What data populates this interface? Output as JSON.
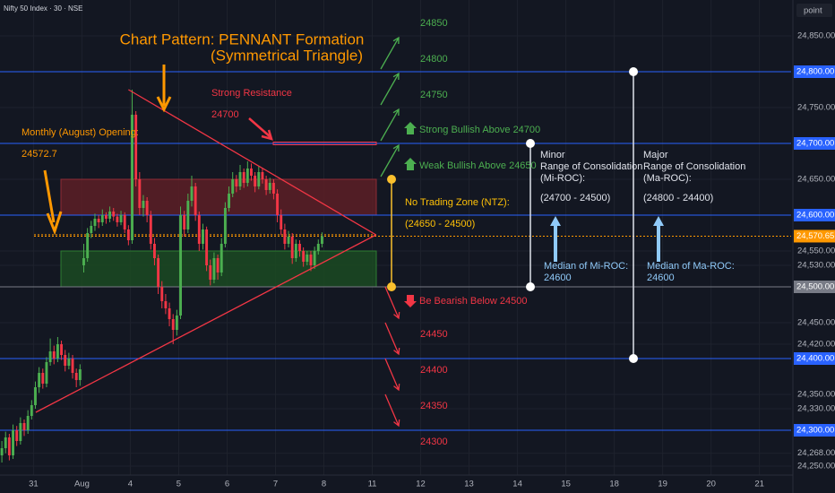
{
  "chart_data": {
    "type": "candlestick",
    "header": "Nifty 50 Index · 30 · NSE",
    "axis_unit": "point",
    "title": "Chart Pattern: PENNANT Formation",
    "subtitle": "(Symmetrical Triangle)",
    "colors": {
      "up": "#4caf50",
      "down": "#f23645",
      "grid": "#1e222d",
      "background": "#131722"
    },
    "grid": true,
    "xlim": [
      0,
      212.5
    ],
    "xticks": [
      {
        "value": 9,
        "label": "31"
      },
      {
        "value": 22,
        "label": "Aug"
      },
      {
        "value": 35,
        "label": "4"
      },
      {
        "value": 48,
        "label": "5"
      },
      {
        "value": 61,
        "label": "6"
      },
      {
        "value": 74,
        "label": "7"
      },
      {
        "value": 87,
        "label": "8"
      },
      {
        "value": 100,
        "label": "11"
      },
      {
        "value": 113,
        "label": "12"
      },
      {
        "value": 126,
        "label": "13"
      },
      {
        "value": 139,
        "label": "14"
      },
      {
        "value": 152,
        "label": "15"
      },
      {
        "value": 165,
        "label": "18"
      },
      {
        "value": 178,
        "label": "19"
      },
      {
        "value": 191,
        "label": "20"
      },
      {
        "value": 204,
        "label": "21"
      }
    ],
    "ylim": [
      24237.5,
      24900
    ],
    "yticks": [
      {
        "value": 24850,
        "label": "24,850.00"
      },
      {
        "value": 24750,
        "label": "24,750.00"
      },
      {
        "value": 24650,
        "label": "24,650.00"
      },
      {
        "value": 24550,
        "label": "24,550.00"
      },
      {
        "value": 24530,
        "label": "24,530.00"
      },
      {
        "value": 24450,
        "label": "24,450.00"
      },
      {
        "value": 24420,
        "label": "24,420.00"
      },
      {
        "value": 24350,
        "label": "24,350.00"
      },
      {
        "value": 24330,
        "label": "24,330.00"
      },
      {
        "value": 24268,
        "label": "24,268.00"
      },
      {
        "value": 24250,
        "label": "24,250.00"
      }
    ],
    "price_labels": [
      {
        "value": 24800,
        "label": "24,800.00",
        "color": "#2962ff",
        "line": "solid"
      },
      {
        "value": 24700,
        "label": "24,700.00",
        "color": "#2962ff",
        "line": "solid"
      },
      {
        "value": 24600,
        "label": "24,600.00",
        "color": "#2962ff",
        "line": "solid"
      },
      {
        "value": 24570.65,
        "label": "24,570.65",
        "color": "#ff9800",
        "line": "dotted"
      },
      {
        "value": 24500,
        "label": "24,500.00",
        "color": "#787b86",
        "line": "solid"
      },
      {
        "value": 24400,
        "label": "24,400.00",
        "color": "#2962ff",
        "line": "solid"
      },
      {
        "value": 24300,
        "label": "24,300.00",
        "color": "#2962ff",
        "line": "solid"
      }
    ],
    "open": [
      24265,
      24275,
      24290,
      24265,
      24300,
      24285,
      24310,
      24300,
      24320,
      24335,
      24360,
      24380,
      24365,
      24395,
      24410,
      24400,
      24420,
      24405,
      24390,
      24400,
      24380,
      24370,
      24530,
      24540,
      24575,
      24585,
      24595,
      24590,
      24600,
      24595,
      24605,
      24598,
      24590,
      24600,
      24580,
      24565,
      24740,
      24650,
      24610,
      24620,
      24600,
      24560,
      24540,
      24500,
      24480,
      24470,
      24455,
      24440,
      24460,
      24600,
      24580,
      24620,
      24640,
      24600,
      24560,
      24580,
      24530,
      24510,
      24540,
      24520,
      24560,
      24610,
      24630,
      24650,
      24640,
      24660,
      24645,
      24665,
      24655,
      24640,
      24660,
      24650,
      24635,
      24645,
      24630,
      24600,
      24580,
      24560,
      24570,
      24540,
      24560,
      24550,
      24535,
      24545,
      24530,
      24550,
      24560
    ],
    "high": [
      24285,
      24298,
      24295,
      24308,
      24306,
      24318,
      24315,
      24328,
      24342,
      24368,
      24388,
      24386,
      24402,
      24428,
      24418,
      24430,
      24425,
      24412,
      24408,
      24405,
      24386,
      24392,
      24560,
      24582,
      24592,
      24602,
      24600,
      24608,
      24604,
      24612,
      24610,
      24602,
      24606,
      24604,
      24586,
      24775,
      24745,
      24660,
      24628,
      24625,
      24606,
      24568,
      24545,
      24508,
      24490,
      24478,
      24462,
      24468,
      24612,
      24606,
      24630,
      24655,
      24645,
      24605,
      24588,
      24584,
      24538,
      24548,
      24545,
      24568,
      24618,
      24640,
      24660,
      24656,
      24670,
      24665,
      24675,
      24672,
      24660,
      24668,
      24666,
      24655,
      24652,
      24650,
      24636,
      24608,
      24588,
      24578,
      24575,
      24566,
      24565,
      24555,
      24550,
      24550,
      24556,
      24566,
      24576
    ],
    "low": [
      24255,
      24268,
      24258,
      24260,
      24278,
      24280,
      24292,
      24295,
      24315,
      24330,
      24352,
      24358,
      24360,
      24390,
      24392,
      24395,
      24398,
      24382,
      24385,
      24372,
      24360,
      24362,
      24520,
      24535,
      24568,
      24578,
      24582,
      24585,
      24588,
      24590,
      24592,
      24584,
      24586,
      24575,
      24558,
      24560,
      24640,
      24600,
      24598,
      24590,
      24552,
      24530,
      24490,
      24470,
      24462,
      24445,
      24420,
      24432,
      24455,
      24570,
      24575,
      24612,
      24592,
      24550,
      24552,
      24522,
      24502,
      24505,
      24510,
      24515,
      24555,
      24605,
      24625,
      24632,
      24635,
      24638,
      24640,
      24648,
      24632,
      24636,
      24644,
      24628,
      24630,
      24622,
      24590,
      24572,
      24552,
      24555,
      24532,
      24535,
      24542,
      24528,
      24530,
      24522,
      24525,
      24545,
      24555
    ],
    "close": [
      24275,
      24290,
      24265,
      24300,
      24285,
      24310,
      24300,
      24320,
      24335,
      24360,
      24380,
      24365,
      24395,
      24410,
      24400,
      24420,
      24405,
      24390,
      24400,
      24380,
      24370,
      24385,
      24540,
      24575,
      24585,
      24595,
      24590,
      24600,
      24595,
      24605,
      24598,
      24590,
      24600,
      24580,
      24565,
      24740,
      24650,
      24610,
      24620,
      24600,
      24560,
      24540,
      24500,
      24480,
      24470,
      24455,
      24440,
      24460,
      24600,
      24580,
      24620,
      24640,
      24600,
      24560,
      24580,
      24530,
      24510,
      24540,
      24520,
      24560,
      24610,
      24630,
      24650,
      24640,
      24660,
      24645,
      24665,
      24655,
      24640,
      24660,
      24650,
      24635,
      24645,
      24630,
      24600,
      24580,
      24560,
      24570,
      24540,
      24560,
      24550,
      24535,
      24545,
      24530,
      24550,
      24560,
      24570.65
    ],
    "zones": [
      {
        "from": 24600,
        "to": 24650,
        "color": "#5d1f26",
        "border": "#8e2b35"
      },
      {
        "from": 24500,
        "to": 24550,
        "color": "#1b4a22",
        "border": "#2e7d32"
      }
    ],
    "trend_lines": [
      {
        "x": [
          34.5,
          101
        ],
        "y": [
          24775,
          24572.5
        ],
        "color": "#f23645"
      },
      {
        "x": [
          9.6,
          101
        ],
        "y": [
          24325,
          24572.5
        ],
        "color": "#f23645"
      }
    ],
    "resistance": {
      "label": "Strong Resistance",
      "value": 24700
    },
    "monthly_open": {
      "label": "Monthly (August) Opening:",
      "value": 24572.7
    },
    "bullish_targets": [
      24850,
      24800,
      24750
    ],
    "strong_bullish": "Strong Bullish Above 24700",
    "weak_bullish": "Weak Bullish Above 24650",
    "bearish": "Be Bearish Below 24500",
    "bearish_targets": [
      24450,
      24400,
      24350,
      24300
    ],
    "ntz": {
      "label": "No Trading Zone (NTZ):",
      "range_label": "(24650 - 24500)",
      "from": 24500,
      "to": 24650
    },
    "ranges": [
      {
        "title": [
          "Minor",
          "Range of Consolidation",
          "(Mi-ROC):"
        ],
        "range_label": "(24700 - 24500)",
        "from": 24500,
        "to": 24700,
        "median_label": "Median of Mi-ROC:",
        "median": 24600
      },
      {
        "title": [
          "Major",
          "Range of Consolidation",
          "(Ma-ROC):"
        ],
        "range_label": "(24800 - 24400)",
        "from": 24400,
        "to": 24800,
        "median_label": "Median of Ma-ROC:",
        "median": 24600
      }
    ]
  }
}
